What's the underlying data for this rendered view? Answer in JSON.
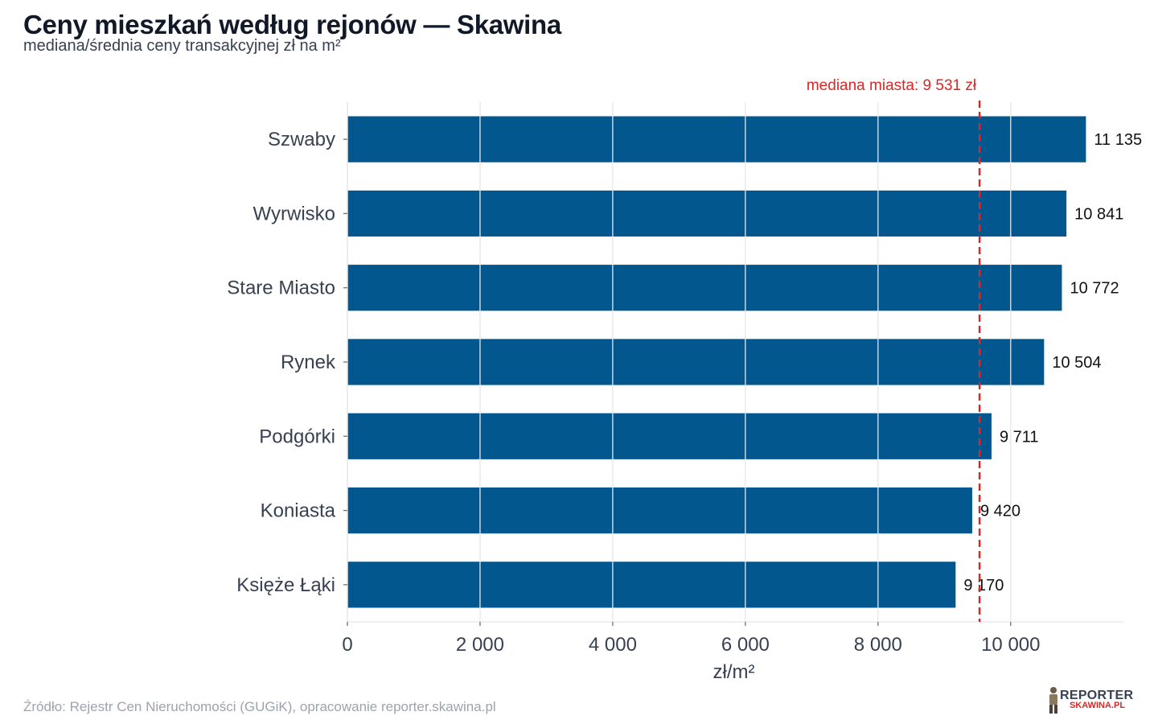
{
  "header": {
    "title": "Ceny mieszkań według rejonów — Skawina",
    "subtitle": "mediana/średnia ceny transakcyjnej zł na m²"
  },
  "footer": {
    "source": "Źródło: Rejestr Cen Nieruchomości (GUGiK), opracowanie reporter.skawina.pl",
    "logo_text_top": "REPORTER",
    "logo_text_bottom": "SKAWINA.PL"
  },
  "colors": {
    "bar": "#02578f",
    "reference": "#dc2626",
    "grid": "#e5e7eb"
  },
  "chart_data": {
    "type": "bar",
    "orientation": "horizontal",
    "categories": [
      "Szwaby",
      "Wyrwisko",
      "Stare Miasto",
      "Rynek",
      "Podgórki",
      "Koniasta",
      "Księże Łąki"
    ],
    "values": [
      11135,
      10841,
      10772,
      10504,
      9711,
      9420,
      9170
    ],
    "value_labels": [
      "11 135",
      "10 841",
      "10 772",
      "10 504",
      "9 711",
      "9 420",
      "9 170"
    ],
    "xlabel": "zł/m²",
    "ylabel": "",
    "xlim": [
      0,
      11700
    ],
    "xticks": [
      0,
      2000,
      4000,
      6000,
      8000,
      10000
    ],
    "xtick_labels": [
      "0",
      "2 000",
      "4 000",
      "6 000",
      "8 000",
      "10 000"
    ],
    "grid": true,
    "reference_line": {
      "value": 9531,
      "label": "mediana miasta: 9 531 zł"
    }
  }
}
